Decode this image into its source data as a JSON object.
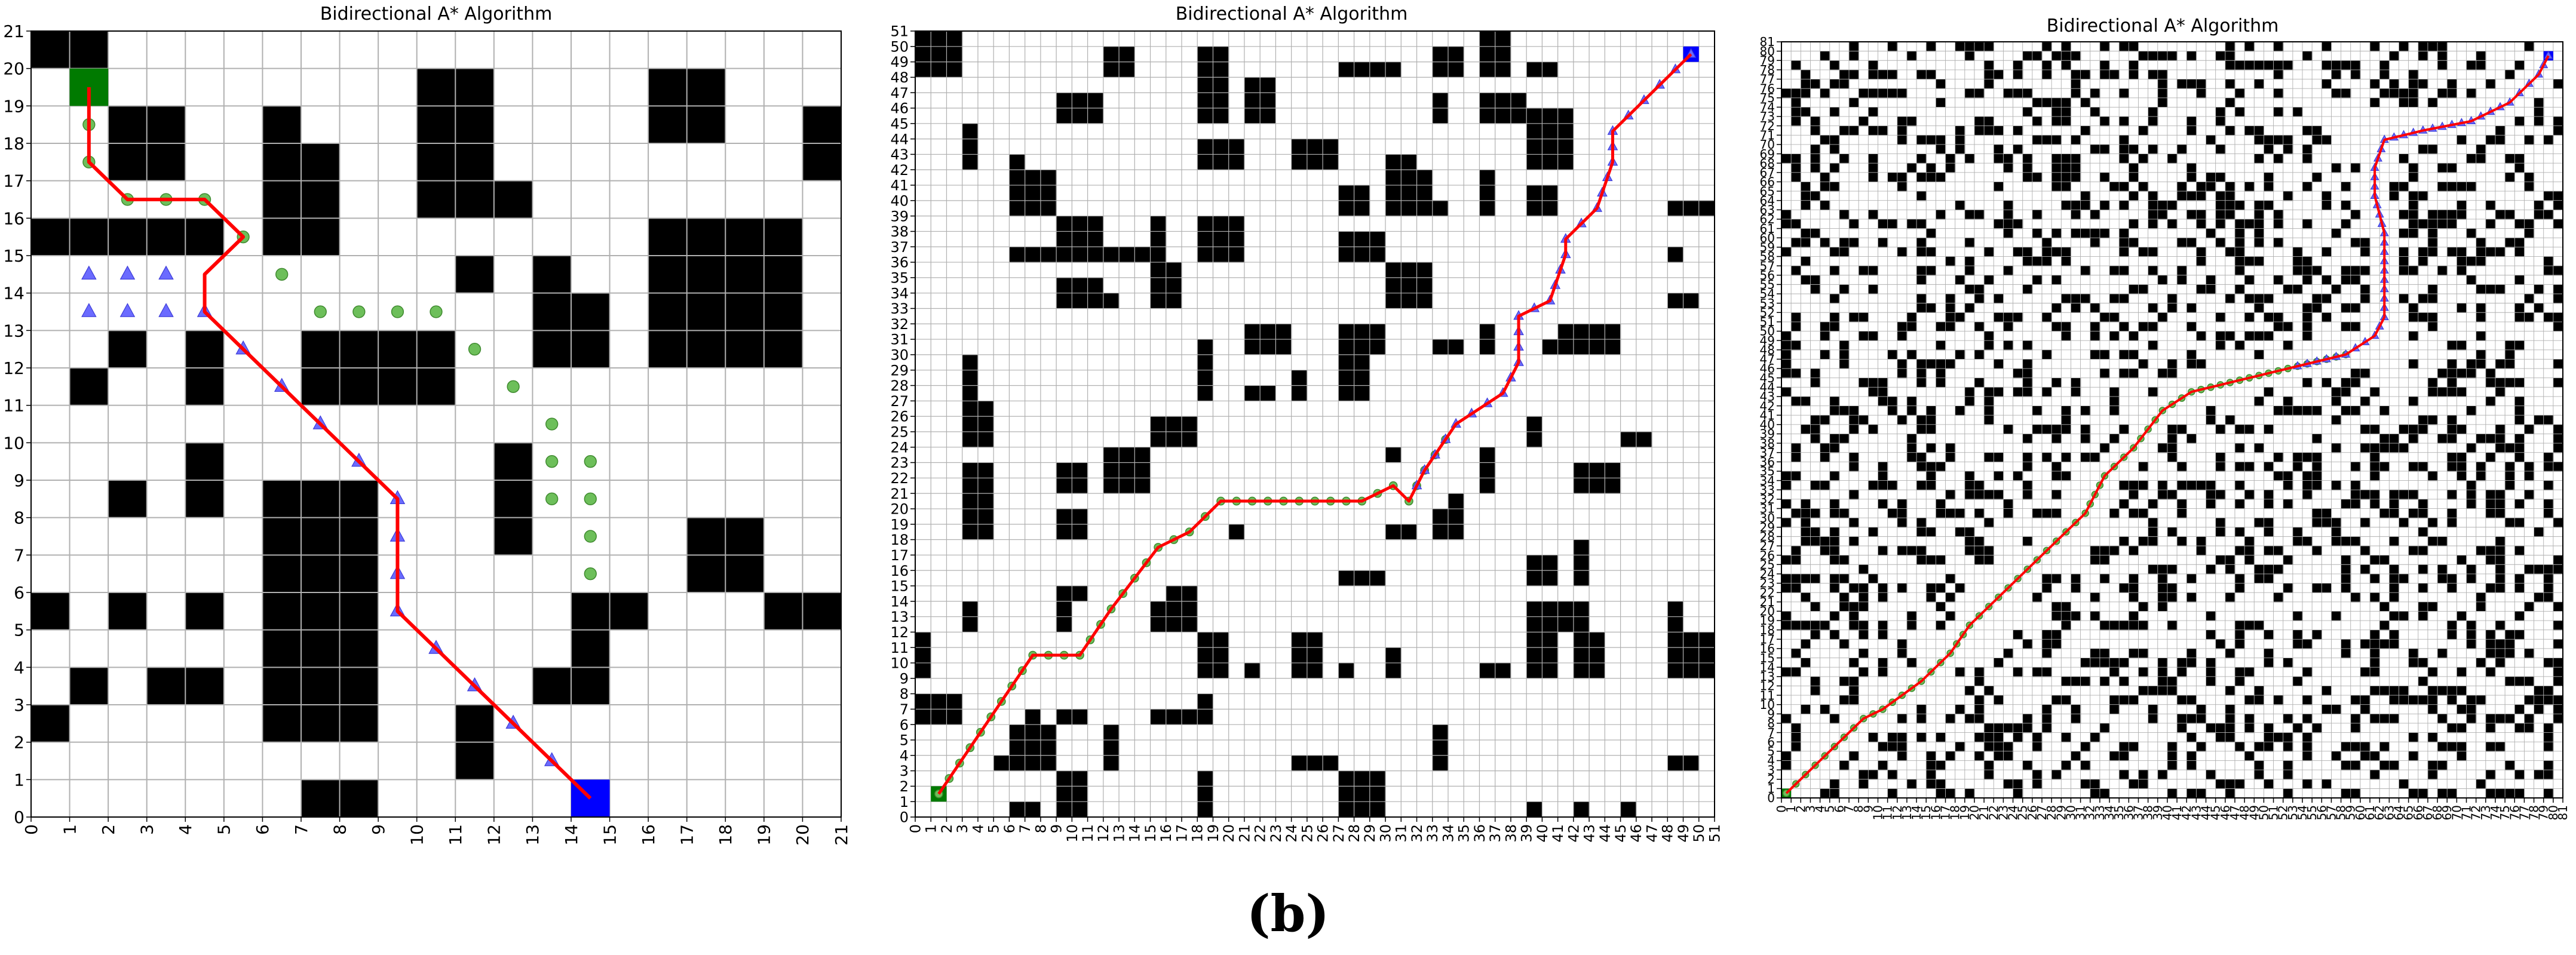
{
  "caption": "(b)",
  "chart_data": [
    {
      "type": "grid-path",
      "title": "Bidirectional A* Algorithm",
      "xlabel": "",
      "ylabel": "",
      "xlim": [
        0,
        21
      ],
      "ylim": [
        0,
        21
      ],
      "grid": true,
      "start": [
        1,
        19
      ],
      "goal": [
        14,
        0
      ],
      "obstacle_cells": [
        [
          0,
          20
        ],
        [
          1,
          20
        ],
        [
          3,
          18
        ],
        [
          3,
          17
        ],
        [
          2,
          18
        ],
        [
          2,
          17
        ],
        [
          6,
          18
        ],
        [
          6,
          17
        ],
        [
          7,
          17
        ],
        [
          6,
          16
        ],
        [
          7,
          16
        ],
        [
          6,
          15
        ],
        [
          7,
          15
        ],
        [
          0,
          15
        ],
        [
          1,
          15
        ],
        [
          2,
          15
        ],
        [
          3,
          15
        ],
        [
          4,
          15
        ],
        [
          10,
          19
        ],
        [
          11,
          19
        ],
        [
          10,
          18
        ],
        [
          11,
          18
        ],
        [
          10,
          17
        ],
        [
          11,
          17
        ],
        [
          12,
          16
        ],
        [
          10,
          16
        ],
        [
          11,
          16
        ],
        [
          16,
          19
        ],
        [
          17,
          19
        ],
        [
          16,
          18
        ],
        [
          17,
          18
        ],
        [
          20,
          18
        ],
        [
          20,
          17
        ],
        [
          16,
          15
        ],
        [
          17,
          15
        ],
        [
          18,
          15
        ],
        [
          19,
          15
        ],
        [
          16,
          14
        ],
        [
          17,
          14
        ],
        [
          18,
          14
        ],
        [
          19,
          14
        ],
        [
          16,
          13
        ],
        [
          17,
          13
        ],
        [
          18,
          13
        ],
        [
          19,
          13
        ],
        [
          16,
          12
        ],
        [
          17,
          12
        ],
        [
          18,
          12
        ],
        [
          19,
          12
        ],
        [
          11,
          14
        ],
        [
          13,
          14
        ],
        [
          13,
          13
        ],
        [
          14,
          13
        ],
        [
          13,
          12
        ],
        [
          14,
          12
        ],
        [
          2,
          12
        ],
        [
          4,
          12
        ],
        [
          1,
          11
        ],
        [
          4,
          11
        ],
        [
          7,
          12
        ],
        [
          8,
          12
        ],
        [
          9,
          12
        ],
        [
          10,
          12
        ],
        [
          7,
          11
        ],
        [
          8,
          11
        ],
        [
          9,
          11
        ],
        [
          10,
          11
        ],
        [
          4,
          9
        ],
        [
          4,
          8
        ],
        [
          2,
          8
        ],
        [
          12,
          9
        ],
        [
          12,
          8
        ],
        [
          12,
          7
        ],
        [
          6,
          8
        ],
        [
          7,
          8
        ],
        [
          8,
          8
        ],
        [
          6,
          7
        ],
        [
          7,
          7
        ],
        [
          8,
          7
        ],
        [
          6,
          6
        ],
        [
          7,
          6
        ],
        [
          8,
          6
        ],
        [
          6,
          5
        ],
        [
          7,
          5
        ],
        [
          8,
          5
        ],
        [
          6,
          4
        ],
        [
          7,
          4
        ],
        [
          8,
          4
        ],
        [
          6,
          3
        ],
        [
          7,
          3
        ],
        [
          8,
          3
        ],
        [
          6,
          2
        ],
        [
          7,
          2
        ],
        [
          8,
          2
        ],
        [
          17,
          7
        ],
        [
          18,
          7
        ],
        [
          17,
          6
        ],
        [
          18,
          6
        ],
        [
          0,
          5
        ],
        [
          2,
          5
        ],
        [
          4,
          5
        ],
        [
          14,
          5
        ],
        [
          15,
          5
        ],
        [
          19,
          5
        ],
        [
          20,
          5
        ],
        [
          14,
          4
        ],
        [
          1,
          3
        ],
        [
          3,
          3
        ],
        [
          4,
          3
        ],
        [
          13,
          3
        ],
        [
          14,
          3
        ],
        [
          0,
          2
        ],
        [
          11,
          2
        ],
        [
          11,
          1
        ],
        [
          7,
          0
        ],
        [
          8,
          0
        ]
      ],
      "path": [
        [
          1.5,
          19.5
        ],
        [
          1.5,
          18.5
        ],
        [
          1.5,
          17.5
        ],
        [
          2.5,
          16.5
        ],
        [
          3.5,
          16.5
        ],
        [
          4.5,
          16.5
        ],
        [
          5.5,
          15.5
        ],
        [
          4.5,
          14.5
        ],
        [
          4.5,
          13.5
        ],
        [
          5.5,
          12.5
        ],
        [
          6.5,
          11.5
        ],
        [
          7.5,
          10.5
        ],
        [
          8.5,
          9.5
        ],
        [
          9.5,
          8.5
        ],
        [
          9.5,
          7.5
        ],
        [
          9.5,
          6.5
        ],
        [
          9.5,
          5.5
        ],
        [
          10.5,
          4.5
        ],
        [
          11.5,
          3.5
        ],
        [
          12.5,
          2.5
        ],
        [
          13.5,
          1.5
        ],
        [
          14.5,
          0.5
        ]
      ],
      "forward_explored": [
        [
          1.5,
          18.5
        ],
        [
          1.5,
          17.5
        ],
        [
          2.5,
          16.5
        ],
        [
          3.5,
          16.5
        ],
        [
          4.5,
          16.5
        ],
        [
          5.5,
          15.5
        ],
        [
          6.5,
          14.5
        ],
        [
          7.5,
          13.5
        ],
        [
          8.5,
          13.5
        ],
        [
          9.5,
          13.5
        ],
        [
          10.5,
          13.5
        ],
        [
          11.5,
          12.5
        ],
        [
          12.5,
          11.5
        ],
        [
          13.5,
          10.5
        ],
        [
          13.5,
          9.5
        ],
        [
          14.5,
          9.5
        ],
        [
          13.5,
          8.5
        ],
        [
          14.5,
          8.5
        ],
        [
          14.5,
          7.5
        ],
        [
          14.5,
          6.5
        ]
      ],
      "backward_explored": [
        [
          1.5,
          14.5
        ],
        [
          2.5,
          14.5
        ],
        [
          3.5,
          14.5
        ],
        [
          1.5,
          13.5
        ],
        [
          2.5,
          13.5
        ],
        [
          3.5,
          13.5
        ],
        [
          4.5,
          13.5
        ],
        [
          5.5,
          12.5
        ],
        [
          6.5,
          11.5
        ],
        [
          7.5,
          10.5
        ],
        [
          8.5,
          9.5
        ],
        [
          9.5,
          8.5
        ],
        [
          9.5,
          7.5
        ],
        [
          9.5,
          6.5
        ],
        [
          9.5,
          5.5
        ],
        [
          10.5,
          4.5
        ],
        [
          11.5,
          3.5
        ],
        [
          12.5,
          2.5
        ],
        [
          13.5,
          1.5
        ]
      ]
    },
    {
      "type": "grid-path",
      "title": "Bidirectional A* Algorithm",
      "xlabel": "",
      "ylabel": "",
      "xlim": [
        0,
        51
      ],
      "ylim": [
        0,
        51
      ],
      "grid": true,
      "start": [
        1,
        1
      ],
      "goal": [
        49,
        49
      ],
      "obstacle_density": 0.3,
      "path_waypoints": [
        [
          1.5,
          1.5
        ],
        [
          3.5,
          4.5
        ],
        [
          5.5,
          7.5
        ],
        [
          7.5,
          10.5
        ],
        [
          10.5,
          10.5
        ],
        [
          12.5,
          13.5
        ],
        [
          15.5,
          17.5
        ],
        [
          17.5,
          18.5
        ],
        [
          19.5,
          20.5
        ],
        [
          28.5,
          20.5
        ],
        [
          30.5,
          21.5
        ],
        [
          31.5,
          20.5
        ],
        [
          32.5,
          22.5
        ],
        [
          34.5,
          25.5
        ],
        [
          37.5,
          27.5
        ],
        [
          38.5,
          29.5
        ],
        [
          38.5,
          32.5
        ],
        [
          40.5,
          33.5
        ],
        [
          41.5,
          36.5
        ],
        [
          41.5,
          37.5
        ],
        [
          43.5,
          39.5
        ],
        [
          44.5,
          42.5
        ],
        [
          44.5,
          44.5
        ],
        [
          46.5,
          46.5
        ],
        [
          49.5,
          49.5
        ]
      ]
    },
    {
      "type": "grid-path",
      "title": "Bidirectional A* Algorithm",
      "xlabel": "",
      "ylabel": "",
      "xlim": [
        0,
        81
      ],
      "ylim": [
        0,
        81
      ],
      "grid": true,
      "start": [
        0,
        0
      ],
      "goal": [
        79,
        79
      ],
      "obstacle_density": 0.3,
      "path_waypoints": [
        [
          0.5,
          0.5
        ],
        [
          5.5,
          5.5
        ],
        [
          8.5,
          8.5
        ],
        [
          10.5,
          9.5
        ],
        [
          14.5,
          12.5
        ],
        [
          17.5,
          15.5
        ],
        [
          19.5,
          18.5
        ],
        [
          22.5,
          21.5
        ],
        [
          25.5,
          24.5
        ],
        [
          28.5,
          27.5
        ],
        [
          31.5,
          30.5
        ],
        [
          33.5,
          34.5
        ],
        [
          36.5,
          37.5
        ],
        [
          39.5,
          41.5
        ],
        [
          42.5,
          43.5
        ],
        [
          46.5,
          44.5
        ],
        [
          50.5,
          45.5
        ],
        [
          54.5,
          46.5
        ],
        [
          58.5,
          47.5
        ],
        [
          61.5,
          49.5
        ],
        [
          62.5,
          51.5
        ],
        [
          62.5,
          54.5
        ],
        [
          62.5,
          60.5
        ],
        [
          61.5,
          64.5
        ],
        [
          61.5,
          67.5
        ],
        [
          62.5,
          70.5
        ],
        [
          66.5,
          71.5
        ],
        [
          71.5,
          72.5
        ],
        [
          75.5,
          74.5
        ],
        [
          78.5,
          77.5
        ],
        [
          79.5,
          79.5
        ]
      ]
    }
  ]
}
